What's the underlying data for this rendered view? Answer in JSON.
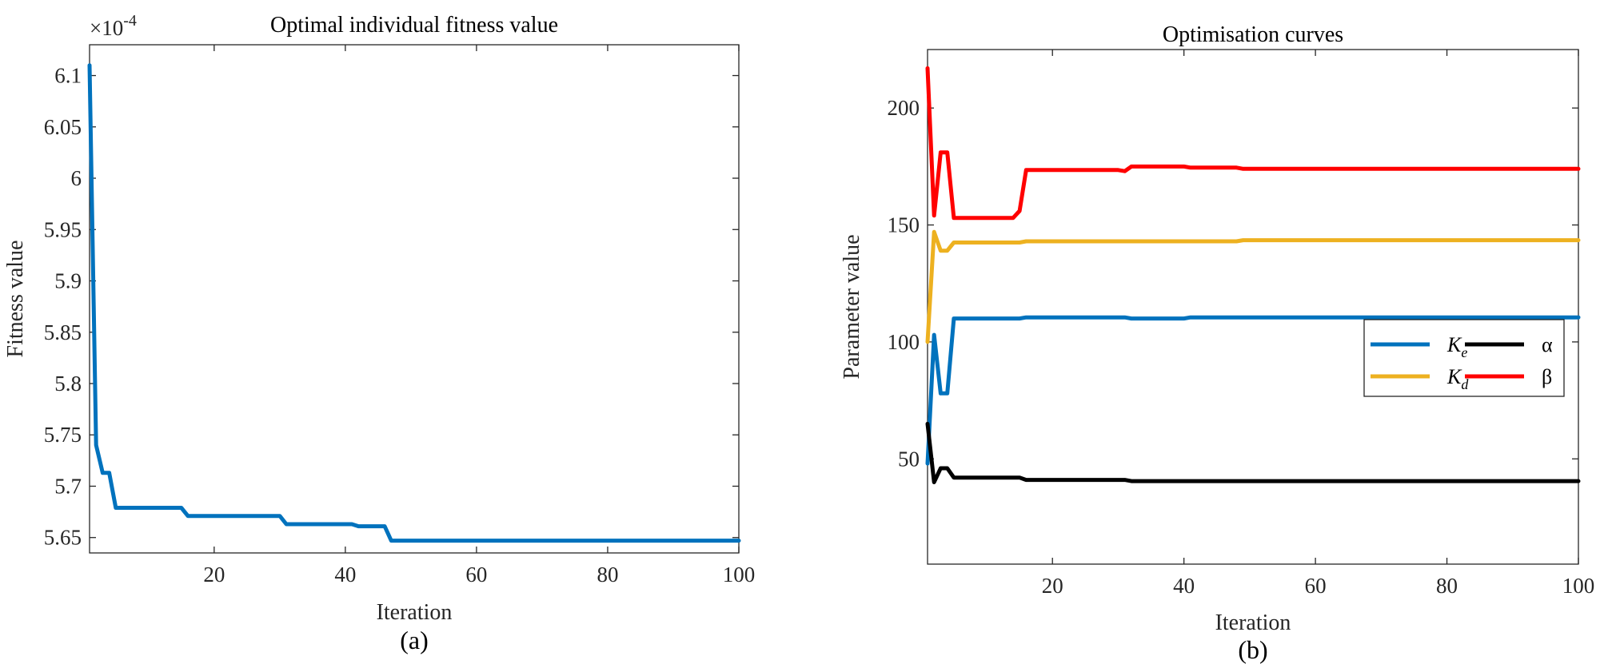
{
  "chart_data": [
    {
      "type": "line",
      "caption": "(a)",
      "title": "Optimal individual fitness value",
      "xlabel": "Iteration",
      "ylabel": "Fitness value",
      "y_multiplier": "×10",
      "y_multiplier_exp": "-4",
      "xlim": [
        1,
        100
      ],
      "ylim": [
        5.635,
        6.13
      ],
      "xticks": [
        20,
        40,
        60,
        80,
        100
      ],
      "yticks": [
        5.65,
        5.7,
        5.75,
        5.8,
        5.85,
        5.9,
        5.95,
        6,
        6.05,
        6.1
      ],
      "ytick_labels": [
        "5.65",
        "5.7",
        "5.75",
        "5.8",
        "5.85",
        "5.9",
        "5.95",
        "6",
        "6.05",
        "6.1"
      ],
      "grid": false,
      "series": [
        {
          "color": "#0072BD",
          "x": [
            1,
            2,
            3,
            4,
            5,
            15,
            16,
            30,
            31,
            41,
            42,
            46,
            47,
            100
          ],
          "y": [
            6.11,
            5.74,
            5.713,
            5.713,
            5.679,
            5.679,
            5.671,
            5.671,
            5.663,
            5.663,
            5.661,
            5.661,
            5.647,
            5.647
          ]
        }
      ]
    },
    {
      "type": "line",
      "caption": "(b)",
      "title": "Optimisation curves",
      "xlabel": "Iteration",
      "ylabel": "Parameter value",
      "xlim": [
        1,
        100
      ],
      "ylim": [
        5,
        225
      ],
      "xticks": [
        20,
        40,
        60,
        80,
        100
      ],
      "yticks": [
        50,
        100,
        150,
        200
      ],
      "grid": false,
      "legend_position": "right",
      "legend": [
        {
          "name": "K",
          "sub": "e",
          "color": "#0072BD",
          "italic": true
        },
        {
          "name": "α",
          "sub": "",
          "color": "#000000",
          "italic": false
        },
        {
          "name": "K",
          "sub": "d",
          "color": "#EDB120",
          "italic": true
        },
        {
          "name": "β",
          "sub": "",
          "color": "#FF0000",
          "italic": false
        }
      ],
      "series": [
        {
          "key": "Ke",
          "color": "#0072BD",
          "x": [
            1,
            2,
            3,
            4,
            5,
            15,
            16,
            31,
            32,
            40,
            41,
            100
          ],
          "y": [
            48,
            103,
            78,
            78,
            110,
            110,
            110.5,
            110.5,
            110,
            110,
            110.5,
            110.5
          ]
        },
        {
          "key": "Kd",
          "color": "#EDB120",
          "x": [
            1,
            2,
            3,
            4,
            5,
            15,
            16,
            48,
            49,
            100
          ],
          "y": [
            100,
            147,
            139,
            139,
            142.5,
            142.5,
            143,
            143,
            143.5,
            143.5
          ]
        },
        {
          "key": "alpha",
          "color": "#000000",
          "x": [
            1,
            2,
            3,
            4,
            5,
            15,
            16,
            31,
            32,
            100
          ],
          "y": [
            65,
            40,
            46,
            46,
            42,
            42,
            41,
            41,
            40.5,
            40.5
          ]
        },
        {
          "key": "beta",
          "color": "#FF0000",
          "x": [
            1,
            2,
            3,
            4,
            5,
            14,
            15,
            16,
            30,
            31,
            32,
            40,
            41,
            48,
            49,
            100
          ],
          "y": [
            217,
            154,
            181,
            181,
            153,
            153,
            156,
            173.5,
            173.5,
            173,
            175,
            175,
            174.5,
            174.5,
            174,
            174
          ]
        }
      ]
    }
  ]
}
